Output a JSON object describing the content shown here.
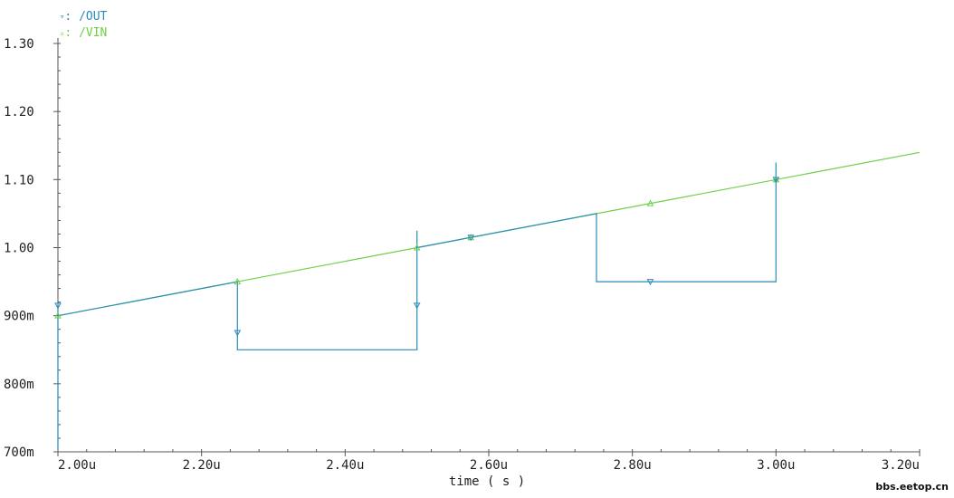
{
  "chart_data": {
    "type": "line",
    "xlabel": "time ( s )",
    "ylabel": "",
    "xlim": [
      2.0,
      3.2
    ],
    "ylim": [
      0.7,
      1.3
    ],
    "x_ticks": [
      {
        "v": 2.0,
        "label": "2.00u"
      },
      {
        "v": 2.2,
        "label": "2.20u"
      },
      {
        "v": 2.4,
        "label": "2.40u"
      },
      {
        "v": 2.6,
        "label": "2.60u"
      },
      {
        "v": 2.8,
        "label": "2.80u"
      },
      {
        "v": 3.0,
        "label": "3.00u"
      },
      {
        "v": 3.2,
        "label": "3.20u"
      }
    ],
    "y_ticks": [
      {
        "v": 0.7,
        "label": "700m"
      },
      {
        "v": 0.8,
        "label": "800m"
      },
      {
        "v": 0.9,
        "label": "900m"
      },
      {
        "v": 1.0,
        "label": "1.00"
      },
      {
        "v": 1.1,
        "label": "1.10"
      },
      {
        "v": 1.2,
        "label": "1.20"
      },
      {
        "v": 1.3,
        "label": "1.30"
      }
    ],
    "grid": false,
    "series": [
      {
        "name": "/OUT",
        "marker": "▿",
        "color": "#2a8bb8",
        "points": [
          [
            2.0,
            0.915
          ],
          [
            2.0,
            0.7
          ],
          [
            2.0,
            0.9
          ],
          [
            2.25,
            0.95
          ],
          [
            2.25,
            0.85
          ],
          [
            2.5,
            0.85
          ],
          [
            2.5,
            1.025
          ],
          [
            2.5,
            1.0
          ],
          [
            2.75,
            1.05
          ],
          [
            2.75,
            0.95
          ],
          [
            3.0,
            0.95
          ],
          [
            3.0,
            1.125
          ],
          [
            3.0,
            1.1
          ]
        ]
      },
      {
        "name": "/VIN",
        "marker": "▵",
        "color": "#6ed044",
        "points": [
          [
            2.0,
            0.9
          ],
          [
            3.2,
            1.14
          ]
        ]
      }
    ]
  },
  "legend": [
    {
      "marker": "▿",
      "sep": ": ",
      "label": "/OUT",
      "color": "#2a8bb8"
    },
    {
      "marker": "▵",
      "sep": ": ",
      "label": "/VIN",
      "color": "#6ed044"
    }
  ],
  "watermark": "bbs.eetop.cn"
}
